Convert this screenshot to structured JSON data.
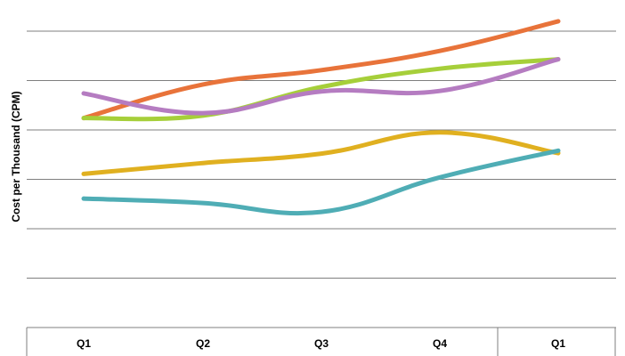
{
  "chart_data": {
    "type": "line",
    "title": "",
    "xlabel": "",
    "ylabel": "Cost per Thousand (CPM)",
    "categories": [
      "Q1",
      "Q2",
      "Q3",
      "Q4",
      "Q1"
    ],
    "ylim": [
      0,
      6
    ],
    "grid": true,
    "legend": "none",
    "series": [
      {
        "color": "#e8733a",
        "values": [
          4.24,
          4.92,
          5.21,
          5.6,
          6.2
        ]
      },
      {
        "color": "#a6cf3a",
        "values": [
          4.24,
          4.29,
          4.87,
          5.24,
          5.43
        ]
      },
      {
        "color": "#b57cc1",
        "values": [
          4.74,
          4.34,
          4.78,
          4.79,
          5.43
        ]
      },
      {
        "color": "#e0b020",
        "values": [
          3.11,
          3.33,
          3.52,
          3.95,
          3.53
        ]
      },
      {
        "color": "#4fadb5",
        "values": [
          2.61,
          2.52,
          2.34,
          3.04,
          3.58
        ]
      }
    ]
  }
}
